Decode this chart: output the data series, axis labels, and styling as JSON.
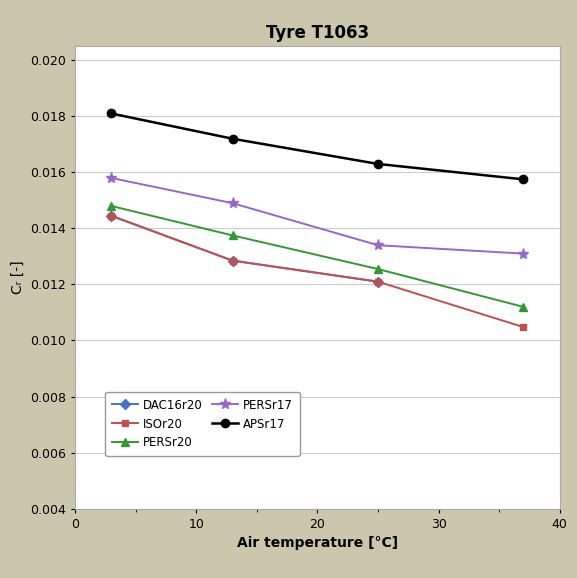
{
  "title": "Tyre T1063",
  "xlabel": "Air temperature [°C]",
  "ylabel": "Cᵣ [-]",
  "x_values": [
    3,
    13,
    25,
    37
  ],
  "series": [
    {
      "name": "DAC16r20",
      "y": [
        0.01445,
        0.01285,
        0.0121,
        null
      ],
      "color": "#4472C4",
      "marker": "D",
      "markersize": 5,
      "linewidth": 1.4,
      "linestyle": "-"
    },
    {
      "name": "ISOr20",
      "y": [
        0.01445,
        0.01285,
        0.0121,
        0.01048
      ],
      "color": "#C0504D",
      "marker": "s",
      "markersize": 5,
      "linewidth": 1.4,
      "linestyle": "-"
    },
    {
      "name": "PERSr20",
      "y": [
        0.0148,
        0.01375,
        0.01255,
        0.0112
      ],
      "color": "#339933",
      "marker": "^",
      "markersize": 6,
      "linewidth": 1.4,
      "linestyle": "-"
    },
    {
      "name": "PERSr17",
      "y": [
        0.0158,
        0.0149,
        0.0134,
        0.0131
      ],
      "color": "#9966CC",
      "marker": "*",
      "markersize": 8,
      "linewidth": 1.4,
      "linestyle": "-"
    },
    {
      "name": "APSr17",
      "y": [
        0.0181,
        0.0172,
        0.0163,
        0.01575
      ],
      "color": "#000000",
      "marker": "o",
      "markersize": 6,
      "linewidth": 1.8,
      "linestyle": "-"
    }
  ],
  "xlim": [
    0,
    40
  ],
  "ylim": [
    0.004,
    0.0205
  ],
  "yticks": [
    0.004,
    0.006,
    0.008,
    0.01,
    0.012,
    0.014,
    0.016,
    0.018,
    0.02
  ],
  "xticks": [
    0,
    10,
    20,
    30,
    40
  ],
  "background_color": "#cbc7ac",
  "plot_bg_color": "#ffffff",
  "grid_color": "#cccccc",
  "title_fontsize": 12,
  "axis_label_fontsize": 10,
  "tick_fontsize": 9,
  "legend_fontsize": 8.5
}
